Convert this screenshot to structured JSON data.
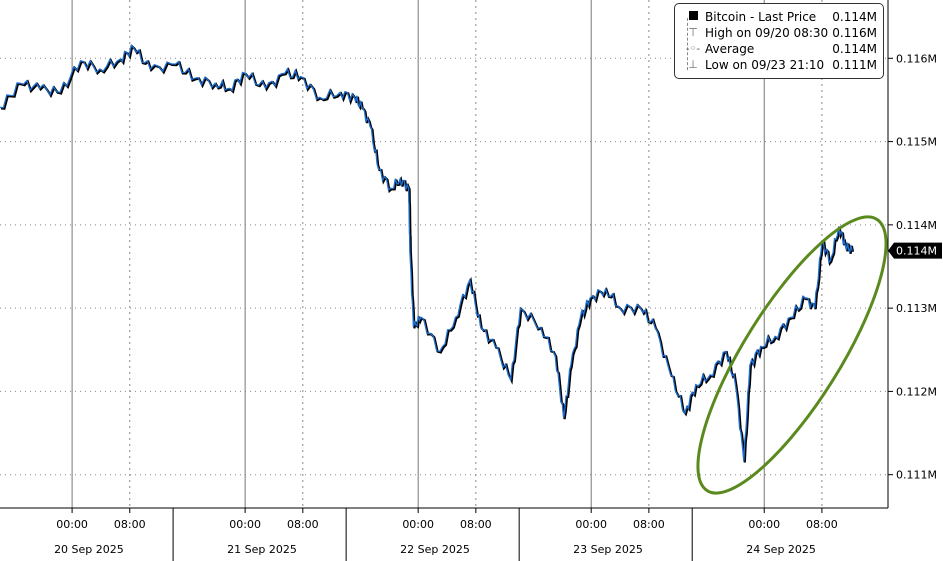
{
  "legend": {
    "rows": [
      {
        "label": "Bitcoin - Last Price",
        "value": "0.114M",
        "icon": "black-square-icon"
      },
      {
        "label": "High on 09/20 08:30",
        "value": "0.116M",
        "icon": "high-marker-icon"
      },
      {
        "label": "Average",
        "value": "0.114M",
        "icon": "average-marker-icon"
      },
      {
        "label": "Low on 09/23 21:10",
        "value": "0.111M",
        "icon": "low-marker-icon"
      }
    ]
  },
  "last_price_tag": "0.114M",
  "colors": {
    "line": "#1f6fd1",
    "shadow": "#000000",
    "annotation": "#5a8a1e",
    "grid": "#999999"
  },
  "chart_data": {
    "type": "line",
    "title": "",
    "xlabel": "",
    "ylabel": "",
    "grid": true,
    "legend_placement": "top-right",
    "xlim": [
      "2025-09-19 14:00",
      "2025-09-24 17:10"
    ],
    "ylim": [
      0.1106,
      0.1167
    ],
    "y_ticks": [
      0.111,
      0.112,
      0.113,
      0.114,
      0.115,
      0.116
    ],
    "y_tick_labels": [
      "0.111M",
      "0.112M",
      "0.113M",
      "0.114M",
      "0.115M",
      "0.116M"
    ],
    "x_tick_labels": [
      {
        "time": "2025-09-20 00:00",
        "label": "00:00"
      },
      {
        "time": "2025-09-20 08:00",
        "label": "08:00"
      },
      {
        "time": "2025-09-21 00:00",
        "label": "00:00"
      },
      {
        "time": "2025-09-21 08:00",
        "label": "08:00"
      },
      {
        "time": "2025-09-22 00:00",
        "label": "00:00"
      },
      {
        "time": "2025-09-22 08:00",
        "label": "08:00"
      },
      {
        "time": "2025-09-23 00:00",
        "label": "00:00"
      },
      {
        "time": "2025-09-23 08:00",
        "label": "08:00"
      },
      {
        "time": "2025-09-24 00:00",
        "label": "00:00"
      },
      {
        "time": "2025-09-24 08:00",
        "label": "08:00"
      }
    ],
    "date_labels": [
      "20 Sep 2025",
      "21 Sep 2025",
      "22 Sep 2025",
      "23 Sep 2025",
      "24 Sep 2025"
    ],
    "series": [
      {
        "name": "Bitcoin - Last Price",
        "x": [
          "2025-09-19 14:00",
          "2025-09-19 16:50",
          "2025-09-19 19:30",
          "2025-09-19 22:20",
          "2025-09-20 01:10",
          "2025-09-20 03:50",
          "2025-09-20 06:40",
          "2025-09-20 08:30",
          "2025-09-20 10:50",
          "2025-09-20 14:20",
          "2025-09-20 17:00",
          "2025-09-20 19:50",
          "2025-09-20 21:50",
          "2025-09-21 00:00",
          "2025-09-21 02:50",
          "2025-09-21 05:30",
          "2025-09-21 07:40",
          "2025-09-21 10:20",
          "2025-09-21 13:10",
          "2025-09-21 15:10",
          "2025-09-21 16:10",
          "2025-09-21 17:20",
          "2025-09-21 18:30",
          "2025-09-21 20:10",
          "2025-09-21 21:30",
          "2025-09-21 22:40",
          "2025-09-21 22:50",
          "2025-09-21 23:20",
          "2025-09-22 00:20",
          "2025-09-22 03:00",
          "2025-09-22 05:10",
          "2025-09-22 07:10",
          "2025-09-22 08:40",
          "2025-09-22 10:40",
          "2025-09-22 12:50",
          "2025-09-22 14:10",
          "2025-09-22 17:00",
          "2025-09-22 19:00",
          "2025-09-22 20:10",
          "2025-09-22 21:10",
          "2025-09-22 22:30",
          "2025-09-22 23:50",
          "2025-09-23 02:00",
          "2025-09-23 04:00",
          "2025-09-23 06:50",
          "2025-09-23 08:50",
          "2025-09-23 11:00",
          "2025-09-23 13:00",
          "2025-09-23 14:30",
          "2025-09-23 16:30",
          "2025-09-23 18:40",
          "2025-09-23 20:00",
          "2025-09-23 21:10",
          "2025-09-23 22:00",
          "2025-09-23 23:30",
          "2025-09-24 01:30",
          "2025-09-24 03:40",
          "2025-09-24 05:40",
          "2025-09-24 07:00",
          "2025-09-24 08:00",
          "2025-09-24 09:10",
          "2025-09-24 10:20",
          "2025-09-24 11:15",
          "2025-09-24 12:10"
        ],
        "values": [
          0.11541,
          0.1157,
          0.11564,
          0.11559,
          0.11597,
          0.11587,
          0.11599,
          0.11613,
          0.11587,
          0.11593,
          0.11576,
          0.1157,
          0.11564,
          0.11582,
          0.11564,
          0.11582,
          0.11578,
          0.11553,
          0.11559,
          0.11553,
          0.11541,
          0.11518,
          0.11467,
          0.11444,
          0.11455,
          0.11444,
          0.11369,
          0.11277,
          0.11289,
          0.11248,
          0.11289,
          0.11334,
          0.11277,
          0.11254,
          0.11214,
          0.113,
          0.11277,
          0.11243,
          0.11168,
          0.11231,
          0.11289,
          0.11312,
          0.11323,
          0.113,
          0.113,
          0.11277,
          0.1122,
          0.11174,
          0.11208,
          0.1122,
          0.11248,
          0.11208,
          0.11116,
          0.11231,
          0.11254,
          0.11266,
          0.11289,
          0.11312,
          0.113,
          0.1138,
          0.11357,
          0.11398,
          0.11375,
          0.11369
        ]
      }
    ]
  }
}
